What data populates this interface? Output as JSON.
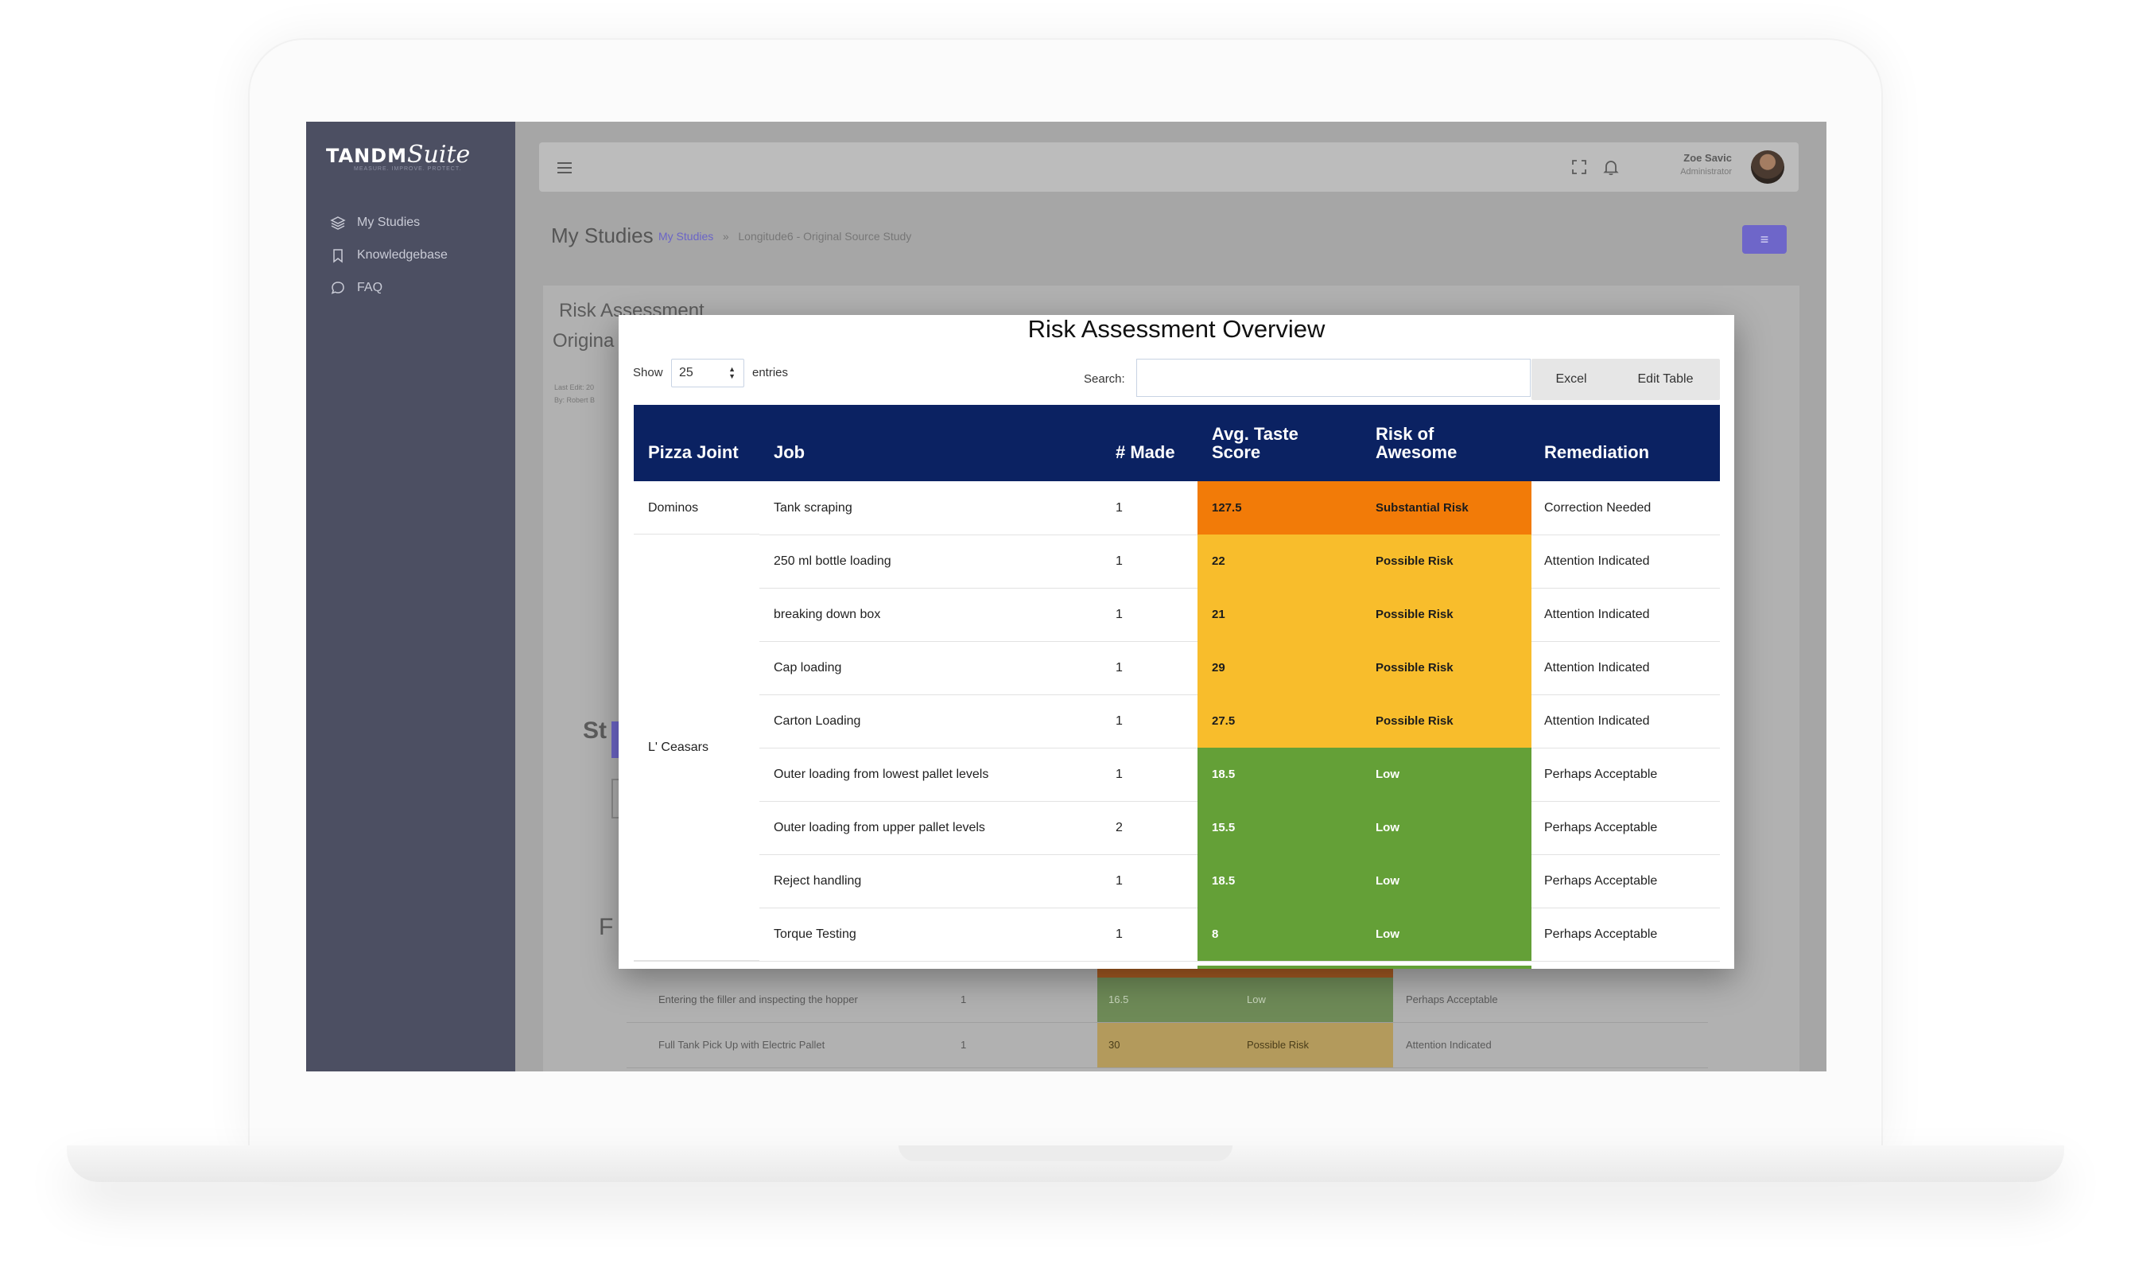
{
  "sidebar": {
    "brand": "TANDM",
    "brand_script": "Suite",
    "brand_tagline": "MEASURE. IMPROVE. PROTECT.",
    "items": [
      {
        "label": "My Studies",
        "icon": "layers-icon"
      },
      {
        "label": "Knowledgebase",
        "icon": "bookmark-icon"
      },
      {
        "label": "FAQ",
        "icon": "chat-bubble-icon"
      }
    ]
  },
  "topbar": {
    "user_name": "Zoe Savic",
    "user_role": "Administrator"
  },
  "page": {
    "title": "My Studies",
    "breadcrumb_link": "My Studies",
    "breadcrumb_separator": "»",
    "breadcrumb_current": "Longitude6 - Original Source Study",
    "menu_button": "≡"
  },
  "background_card": {
    "title": "Risk Assessment",
    "subtitle": "Origina",
    "meta_line1": "Last Edit: 20",
    "meta_line2": "By: Robert B",
    "heading_partial": "St",
    "heading_partial2": "F",
    "rows": [
      {
        "job": "Entering the filler and inspecting the hopper",
        "made": "1",
        "score": "16.5",
        "risk": "Low",
        "remediation": "Perhaps Acceptable"
      },
      {
        "job": "Full Tank Pick Up with Electric Pallet",
        "made": "1",
        "score": "30",
        "risk": "Possible Risk",
        "remediation": "Attention Indicated"
      }
    ]
  },
  "modal": {
    "title": "Risk Assessment Overview",
    "length_label": "Show",
    "length_value": "25",
    "length_suffix": "entries",
    "search_label": "Search:",
    "search_value": "",
    "excel_button": "Excel",
    "edit_table_button": "Edit Table",
    "columns": [
      "Pizza Joint",
      "Job",
      "# Made",
      "Avg. Taste Score",
      "Risk of Awesome",
      "Remediation"
    ],
    "groups": [
      {
        "joint": "Dominos",
        "rows": [
          {
            "job": "Tank scraping",
            "made": "1",
            "score": "127.5",
            "risk": "Substantial Risk",
            "remediation": "Correction Needed",
            "level": "substantial"
          }
        ]
      },
      {
        "joint": "L' Ceasars",
        "rows": [
          {
            "job": "250 ml bottle loading",
            "made": "1",
            "score": "22",
            "risk": "Possible Risk",
            "remediation": "Attention Indicated",
            "level": "possible"
          },
          {
            "job": "breaking down box",
            "made": "1",
            "score": "21",
            "risk": "Possible Risk",
            "remediation": "Attention Indicated",
            "level": "possible"
          },
          {
            "job": "Cap loading",
            "made": "1",
            "score": "29",
            "risk": "Possible Risk",
            "remediation": "Attention Indicated",
            "level": "possible"
          },
          {
            "job": "Carton Loading",
            "made": "1",
            "score": "27.5",
            "risk": "Possible Risk",
            "remediation": "Attention Indicated",
            "level": "possible"
          },
          {
            "job": "Outer loading from lowest pallet levels",
            "made": "1",
            "score": "18.5",
            "risk": "Low",
            "remediation": "Perhaps Acceptable",
            "level": "low"
          },
          {
            "job": "Outer loading from upper pallet levels",
            "made": "2",
            "score": "15.5",
            "risk": "Low",
            "remediation": "Perhaps Acceptable",
            "level": "low"
          },
          {
            "job": "Reject handling",
            "made": "1",
            "score": "18.5",
            "risk": "Low",
            "remediation": "Perhaps Acceptable",
            "level": "low"
          },
          {
            "job": "Torque Testing",
            "made": "1",
            "score": "8",
            "risk": "Low",
            "remediation": "Perhaps Acceptable",
            "level": "low"
          }
        ]
      }
    ]
  },
  "colors": {
    "header_bg": "#0b2262",
    "substantial": "#f27b08",
    "possible": "#f8bd2c",
    "low": "#64a037",
    "sidebar_bg": "#4c4f62",
    "accent": "#6e66c9"
  }
}
